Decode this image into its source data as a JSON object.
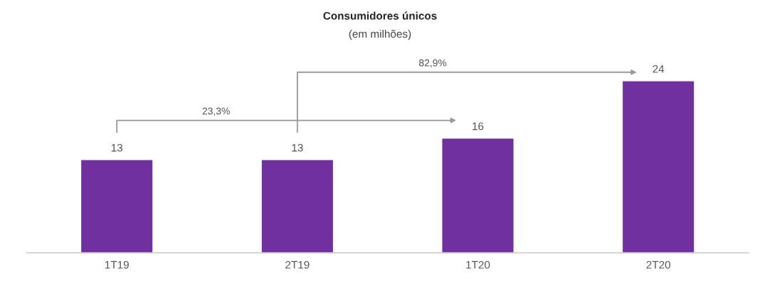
{
  "chart_data": {
    "type": "bar",
    "title": "Consumidores únicos",
    "subtitle": "(em milhões)",
    "categories": [
      "1T19",
      "2T19",
      "1T20",
      "2T20"
    ],
    "values": [
      13,
      13,
      16,
      24
    ],
    "color": "#7030a0",
    "data_labels": true,
    "grid": false,
    "legend": false,
    "annotations": [
      "23,3%",
      "82,9%"
    ]
  }
}
